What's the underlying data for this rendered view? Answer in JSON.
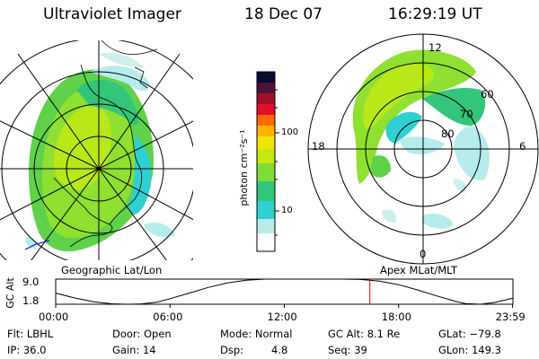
{
  "header": {
    "instrument": "Ultraviolet Imager",
    "date": "18 Dec 07",
    "time": "16:29:19 UT"
  },
  "left_map": {
    "caption": "Geographic Lat/Lon"
  },
  "right_map": {
    "caption": "Apex MLat/MLT",
    "mlt_labels": {
      "top": "12",
      "left": "18",
      "right": "6",
      "bottom": "0"
    },
    "lat_labels": [
      "60",
      "70",
      "80"
    ]
  },
  "colorbar": {
    "unit_label": "photon cm⁻²s⁻¹",
    "ticks": [
      "100",
      "10"
    ],
    "tick_values": [
      100,
      10
    ],
    "range": [
      2.5,
      650
    ],
    "scale": "log",
    "colors": [
      "#ffffff",
      "#b7ecec",
      "#2fd0d0",
      "#33c67a",
      "#7fdb38",
      "#c7e810",
      "#f2e600",
      "#ffb400",
      "#ff6a00",
      "#e0102a",
      "#a0102a",
      "#50103a",
      "#0a0a30"
    ]
  },
  "chart_data": {
    "type": "line",
    "title": "",
    "ylabel": "GC Alt",
    "yticks": [
      "9.0",
      "1.8"
    ],
    "ylim": [
      1.8,
      9.0
    ],
    "xticks": [
      "00:00",
      "06:00",
      "12:00",
      "18:00",
      "23:59"
    ],
    "xlim": [
      0,
      24
    ],
    "x": [
      0,
      1,
      2,
      3,
      3.8,
      4.5,
      5.3,
      6,
      7,
      8,
      9,
      10,
      11,
      12,
      13,
      14,
      15,
      16,
      17,
      18,
      19,
      20,
      21,
      21.5,
      22.3,
      23,
      23.98
    ],
    "values": [
      5.0,
      3.6,
      2.5,
      1.9,
      1.8,
      1.9,
      2.4,
      3.4,
      5.0,
      6.6,
      7.9,
      8.7,
      9.0,
      9.0,
      9.0,
      9.0,
      9.0,
      8.9,
      8.4,
      7.4,
      5.9,
      4.2,
      2.6,
      2.0,
      1.8,
      2.3,
      3.5
    ],
    "marker_time": 16.49,
    "marker_color": "#e00000"
  },
  "status": {
    "flt": "Flt: LBHL",
    "door": "Door: Open",
    "mode": "Mode: Normal",
    "gc_alt": "GC Alt: 8.1 Re",
    "glat": "GLat: −79.8",
    "ip": "IP: 36.0",
    "gain": "Gain: 14",
    "dsp_label": "Dsp:",
    "dsp_value": "4.8",
    "seq": "Seq: 39",
    "glon": "GLon: 149.3"
  }
}
